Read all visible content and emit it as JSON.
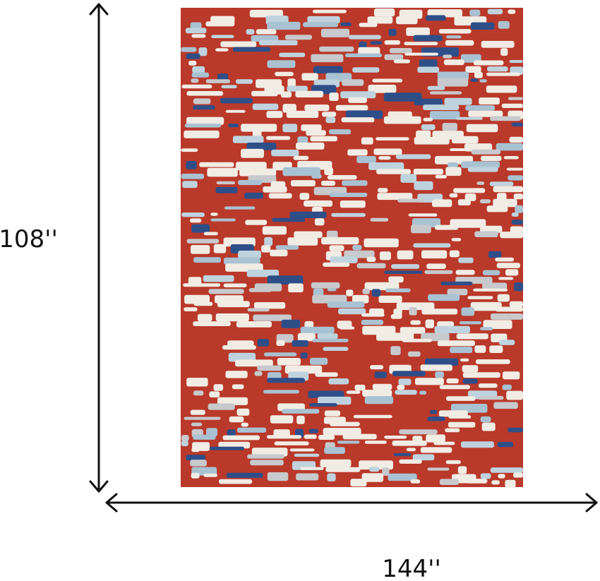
{
  "dimensions": {
    "height": "108''",
    "width": "144''"
  }
}
